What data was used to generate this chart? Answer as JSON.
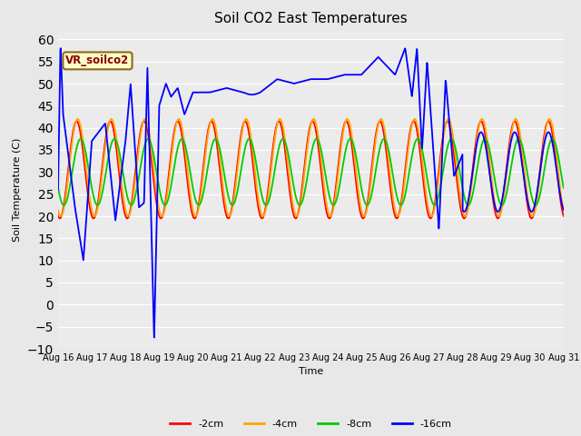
{
  "title": "Soil CO2 East Temperatures",
  "xlabel": "Time",
  "ylabel": "Soil Temperature (C)",
  "ylim": [
    -10,
    62
  ],
  "yticks": [
    -10,
    -5,
    0,
    5,
    10,
    15,
    20,
    25,
    30,
    35,
    40,
    45,
    50,
    55,
    60
  ],
  "x_labels": [
    "Aug 16",
    "Aug 17",
    "Aug 18",
    "Aug 19",
    "Aug 20",
    "Aug 21",
    "Aug 22",
    "Aug 23",
    "Aug 24",
    "Aug 25",
    "Aug 26",
    "Aug 27",
    "Aug 28",
    "Aug 29",
    "Aug 30",
    "Aug 31"
  ],
  "annotation_text": "VR_soilco2",
  "legend_labels": [
    "-2cm",
    "-4cm",
    "-8cm",
    "-16cm"
  ],
  "color_2cm": "#ff0000",
  "color_4cm": "#ffa500",
  "color_8cm": "#00cc00",
  "color_16cm": "#0000ff",
  "bg_color": "#e8e8e8",
  "plot_bg": "#ebebeb",
  "grid_color": "#ffffff",
  "title_fontsize": 11,
  "label_fontsize": 8,
  "tick_fontsize": 7,
  "legend_fontsize": 8,
  "line_width": 1.3
}
